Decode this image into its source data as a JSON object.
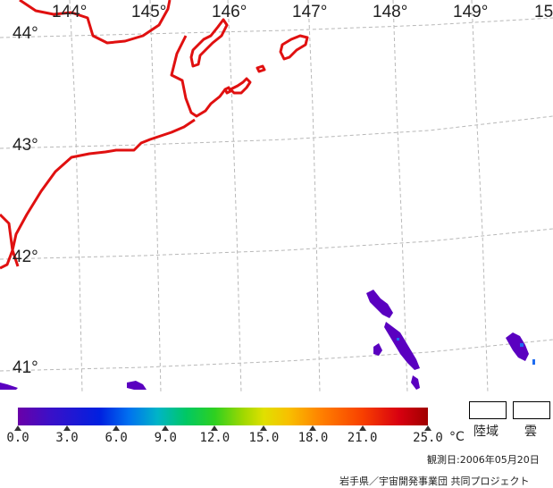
{
  "lon_labels": [
    "144°",
    "145°",
    "146°",
    "147°",
    "148°",
    "149°",
    "15"
  ],
  "lat_labels": [
    "44°",
    "43°",
    "42°",
    "41°"
  ],
  "legend": {
    "unit": "°C",
    "range": [
      0.0,
      25.0
    ],
    "ticks": [
      "0.0",
      "3.0",
      "6.0",
      "9.0",
      "12.0",
      "15.0",
      "18.0",
      "21.0",
      "25.0"
    ]
  },
  "mask_legend": {
    "land": "陸域",
    "cloud": "雲"
  },
  "observation_date": "観測日:2006年05月20日",
  "credit": "岩手県／宇宙開発事業団 共同プロジェクト",
  "colors": {
    "coastline": "#e01010",
    "grid": "#b8b8b8",
    "sst_patch": "#5a00c0"
  }
}
